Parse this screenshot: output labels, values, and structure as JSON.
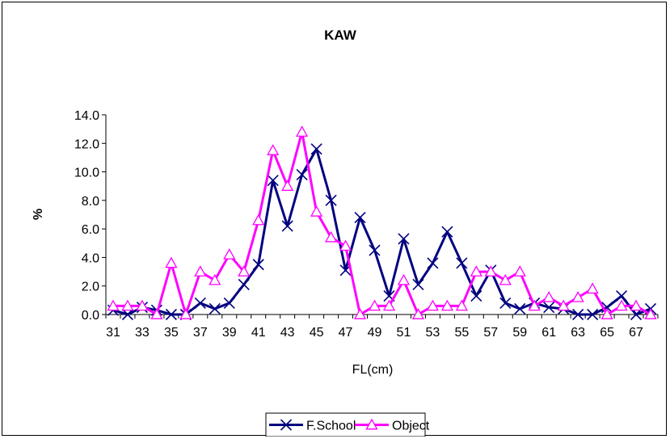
{
  "chart_data": {
    "type": "line",
    "title": "KAW",
    "xlabel": "FL(cm)",
    "ylabel": "%",
    "ylim": [
      0,
      14
    ],
    "y_ticks": [
      "0.0",
      "2.0",
      "4.0",
      "6.0",
      "8.0",
      "10.0",
      "12.0",
      "14.0"
    ],
    "x": [
      31,
      32,
      33,
      34,
      35,
      36,
      37,
      38,
      39,
      40,
      41,
      42,
      43,
      44,
      45,
      46,
      47,
      48,
      49,
      50,
      51,
      52,
      53,
      54,
      55,
      56,
      57,
      58,
      59,
      60,
      61,
      62,
      63,
      64,
      65,
      66,
      67,
      68
    ],
    "x_tick_labels": [
      "31",
      "33",
      "35",
      "37",
      "39",
      "41",
      "43",
      "45",
      "47",
      "49",
      "51",
      "53",
      "55",
      "57",
      "59",
      "61",
      "63",
      "65",
      "67"
    ],
    "grid": false,
    "legend_position": "bottom",
    "series": [
      {
        "name": "F.School",
        "color": "#000080",
        "marker": "x",
        "values": [
          0.3,
          0,
          0.5,
          0.3,
          0,
          0,
          0.8,
          0.4,
          0.8,
          2.1,
          3.5,
          9.4,
          6.2,
          9.8,
          11.6,
          8.0,
          3.1,
          6.8,
          4.5,
          1.3,
          5.3,
          2.1,
          3.6,
          5.8,
          3.6,
          1.3,
          3.1,
          0.8,
          0.4,
          0.8,
          0.5,
          0.4,
          0,
          0,
          0.5,
          1.3,
          0,
          0.4
        ]
      },
      {
        "name": "Object",
        "color": "#FF00FF",
        "marker": "triangle",
        "values": [
          0.6,
          0.6,
          0.6,
          0,
          3.6,
          0,
          3.0,
          2.4,
          4.2,
          3.0,
          6.6,
          11.5,
          9.0,
          12.8,
          7.2,
          5.4,
          4.8,
          0,
          0.6,
          0.6,
          2.4,
          0,
          0.6,
          0.6,
          0.6,
          3.0,
          3.0,
          2.4,
          3.0,
          0.6,
          1.2,
          0.6,
          1.2,
          1.8,
          0,
          0.6,
          0.6,
          0
        ]
      }
    ]
  }
}
